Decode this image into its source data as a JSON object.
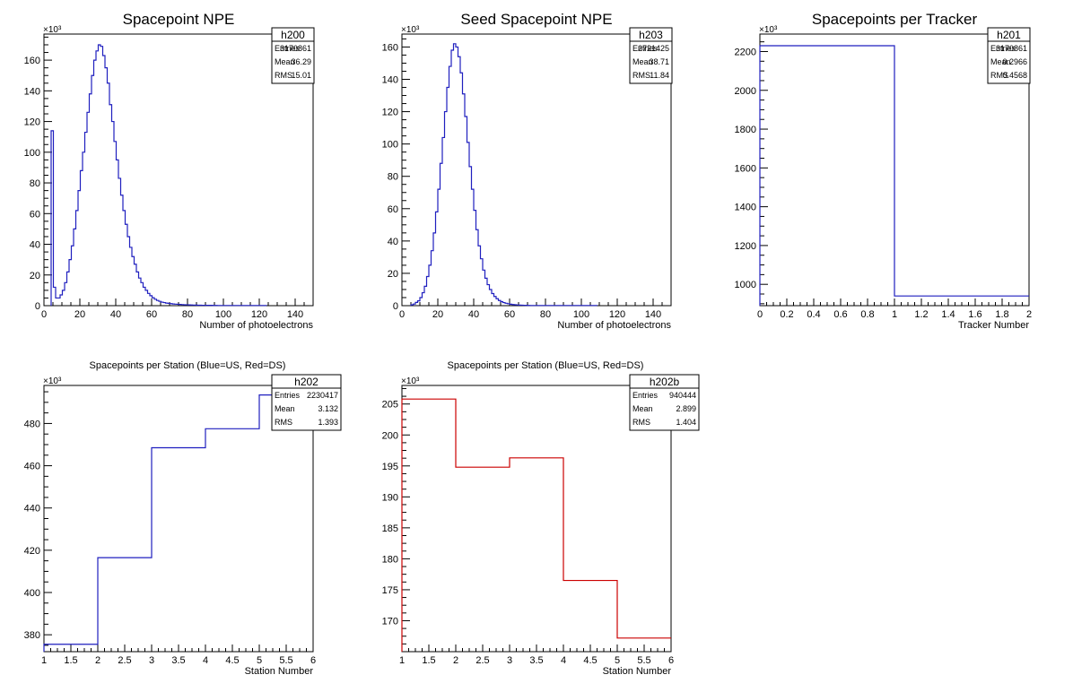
{
  "chart_data": [
    {
      "id": "h200",
      "type": "histogram",
      "title": "Spacepoint NPE",
      "xlabel": "Number of photoelectrons",
      "ylabel": "",
      "y_exponent_label": "×10³",
      "xlim": [
        0,
        150
      ],
      "ylim": [
        0,
        177
      ],
      "xticks": [
        0,
        20,
        40,
        60,
        80,
        100,
        120,
        140
      ],
      "yticks": [
        0,
        20,
        40,
        60,
        80,
        100,
        120,
        140,
        160
      ],
      "line_color": "#1f1fbf",
      "stats": {
        "name": "h200",
        "rows": [
          [
            "Entries",
            "3170861"
          ],
          [
            "Mean",
            "36.29"
          ],
          [
            "RMS",
            "15.01"
          ]
        ]
      },
      "bins": {
        "x0": 4,
        "width": 1.25,
        "values": [
          114,
          12,
          5,
          5,
          7,
          10,
          15,
          22,
          30,
          39,
          50,
          62,
          75,
          88,
          100,
          113,
          126,
          138,
          150,
          160,
          166,
          170,
          169,
          163,
          155,
          145,
          131,
          120,
          107,
          95,
          83,
          72,
          62,
          53,
          45,
          38,
          32,
          27,
          22,
          18,
          15,
          12,
          10,
          8,
          6.5,
          5.2,
          4.2,
          3.4,
          2.8,
          2.3,
          2.0,
          1.7,
          1.5,
          1.3,
          1.1,
          1.0,
          0.9,
          0.8,
          0.7,
          0.6,
          0.55,
          0.5,
          0.45,
          0.4,
          0.35,
          0.3,
          0.3,
          0.25,
          0.25,
          0.2,
          0.2,
          0.2,
          0.15,
          0.15,
          0.1,
          0.1,
          0.1,
          0.1,
          0.1,
          0.1,
          0.1,
          0.1,
          0.1,
          0.1,
          0.1,
          0.1,
          0.1,
          0.1,
          0.1,
          0.1,
          0.1,
          0.1,
          0.1,
          0.1,
          0.1,
          0.1
        ]
      }
    },
    {
      "id": "h203",
      "type": "histogram",
      "title": "Seed Spacepoint NPE",
      "xlabel": "Number of photoelectrons",
      "ylabel": "",
      "y_exponent_label": "×10³",
      "xlim": [
        0,
        150
      ],
      "ylim": [
        0,
        168
      ],
      "xticks": [
        0,
        20,
        40,
        60,
        80,
        100,
        120,
        140
      ],
      "yticks": [
        0,
        20,
        40,
        60,
        80,
        100,
        120,
        140,
        160
      ],
      "line_color": "#1f1fbf",
      "stats": {
        "name": "h203",
        "rows": [
          [
            "Entries",
            "2721425"
          ],
          [
            "Mean",
            "38.71"
          ],
          [
            "RMS",
            "11.84"
          ]
        ]
      },
      "bins": {
        "x0": 5,
        "width": 1.25,
        "values": [
          0.5,
          1,
          2,
          3,
          5,
          8,
          12,
          18,
          25,
          34,
          45,
          58,
          72,
          88,
          104,
          120,
          135,
          148,
          158,
          162,
          160,
          154,
          144,
          131,
          117,
          101,
          86,
          72,
          59,
          47,
          37,
          29,
          22,
          17,
          13,
          10,
          7.5,
          5.7,
          4.3,
          3.2,
          2.5,
          1.9,
          1.5,
          1.2,
          0.9,
          0.7,
          0.55,
          0.45,
          0.35,
          0.3,
          0.25,
          0.2,
          0.15,
          0.1,
          0.1,
          0.1,
          0.1,
          0.1,
          0.1,
          0.1,
          0.1,
          0.1,
          0.1,
          0.1,
          0.1,
          0.1,
          0.1,
          0.1,
          0.1,
          0.1,
          0.1,
          0.1,
          0.1,
          0.1,
          0.1,
          0.1,
          0.1,
          0.1,
          0.1,
          0.1,
          0.1,
          0.1,
          0.1
        ]
      }
    },
    {
      "id": "h201",
      "type": "histogram",
      "title": "Spacepoints per Tracker",
      "xlabel": "Tracker Number",
      "ylabel": "",
      "y_exponent_label": "×10³",
      "xlim": [
        0,
        2
      ],
      "ylim": [
        890,
        2290
      ],
      "xticks": [
        0,
        0.2,
        0.4,
        0.6,
        0.8,
        1,
        1.2,
        1.4,
        1.6,
        1.8,
        2
      ],
      "yticks": [
        1000,
        1200,
        1400,
        1600,
        1800,
        2000,
        2200
      ],
      "line_color": "#1f1fbf",
      "stats": {
        "name": "h201",
        "rows": [
          [
            "Entries",
            "3170861"
          ],
          [
            "Mean",
            "0.2966"
          ],
          [
            "RMS",
            "0.4568"
          ]
        ]
      },
      "bins": {
        "x0": 0,
        "width": 1,
        "values": [
          2230,
          940
        ]
      }
    },
    {
      "id": "h202",
      "type": "histogram",
      "title": "Spacepoints per Station (Blue=US, Red=DS)",
      "xlabel": "Station Number",
      "ylabel": "",
      "y_exponent_label": "×10³",
      "xlim": [
        1,
        6
      ],
      "ylim": [
        372,
        498
      ],
      "xticks": [
        1,
        1.5,
        2,
        2.5,
        3,
        3.5,
        4,
        4.5,
        5,
        5.5,
        6
      ],
      "yticks": [
        380,
        400,
        420,
        440,
        460,
        480
      ],
      "line_color": "#1f1fbf",
      "stats": {
        "name": "h202",
        "rows": [
          [
            "Entries",
            "2230417"
          ],
          [
            "Mean",
            "3.132"
          ],
          [
            "RMS",
            "1.393"
          ]
        ]
      },
      "bins": {
        "x0": 1,
        "width": 1,
        "values": [
          375.5,
          416.5,
          468.5,
          477.5,
          493.5
        ]
      }
    },
    {
      "id": "h202b",
      "type": "histogram",
      "title": "Spacepoints per Station (Blue=US, Red=DS)",
      "xlabel": "Station Number",
      "ylabel": "",
      "y_exponent_label": "×10³",
      "xlim": [
        1,
        6
      ],
      "ylim": [
        165,
        208
      ],
      "xticks": [
        1,
        1.5,
        2,
        2.5,
        3,
        3.5,
        4,
        4.5,
        5,
        5.5,
        6
      ],
      "yticks": [
        170,
        175,
        180,
        185,
        190,
        195,
        200,
        205
      ],
      "line_color": "#cc0000",
      "stats": {
        "name": "h202b",
        "rows": [
          [
            "Entries",
            "940444"
          ],
          [
            "Mean",
            "2.899"
          ],
          [
            "RMS",
            "1.404"
          ]
        ]
      },
      "bins": {
        "x0": 1,
        "width": 1,
        "values": [
          205.8,
          194.8,
          196.3,
          176.5,
          167.2
        ]
      }
    }
  ]
}
